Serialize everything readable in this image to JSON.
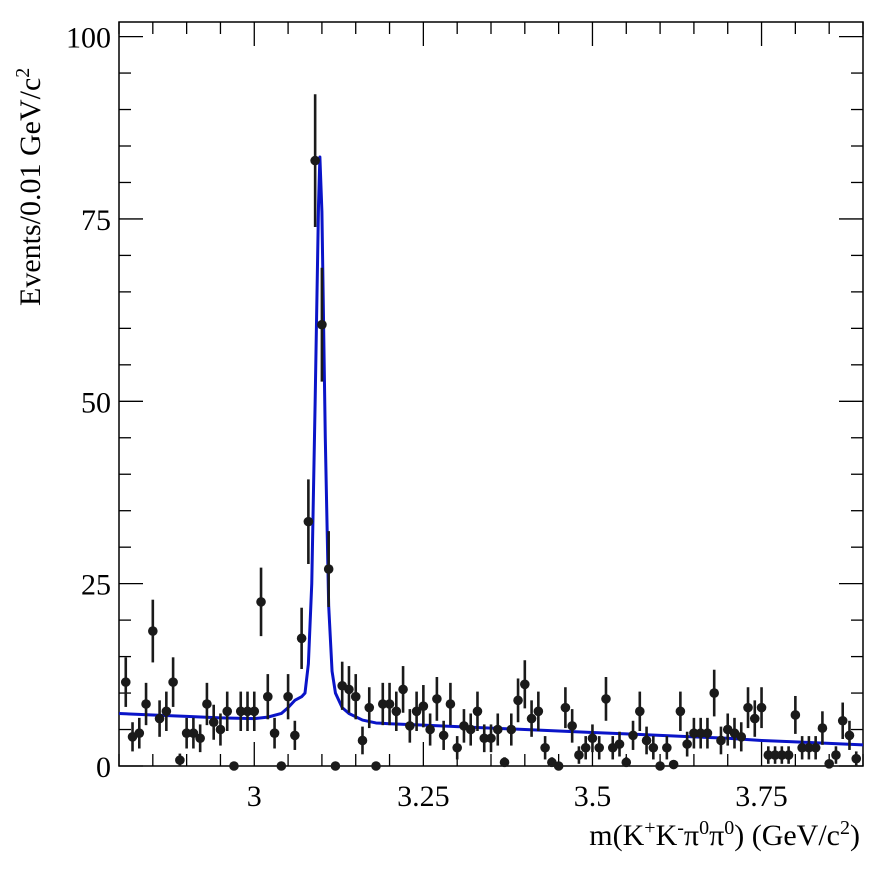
{
  "chart_data": {
    "type": "scatter",
    "title": "",
    "xlabel_parts": {
      "main": "m(K",
      "k_plus": "+",
      "k": "K",
      "k_minus": "-",
      "pi1": "π",
      "zero1": "0",
      "pi2": "π",
      "zero2": "0",
      "close": ") (GeV/c",
      "sq": "2",
      "end": ")"
    },
    "ylabel_parts": {
      "main": "Events/0.01 GeV/c",
      "sq": "2"
    },
    "xlim": [
      2.8,
      3.9
    ],
    "ylim": [
      0,
      102
    ],
    "x_ticks": [
      3,
      3.25,
      3.5,
      3.75
    ],
    "x_tick_labels": [
      "3",
      "3.25",
      "3.5",
      "3.75"
    ],
    "y_ticks": [
      0,
      25,
      50,
      75,
      100
    ],
    "y_tick_labels": [
      "0",
      "25",
      "50",
      "75",
      "100"
    ],
    "colors": {
      "data": "#1a1a1a",
      "fit": "#0a14c8",
      "axes": "#000000"
    },
    "series": [
      {
        "kind": "data",
        "x": [
          2.81,
          2.82,
          2.83,
          2.84,
          2.85,
          2.86,
          2.87,
          2.88,
          2.89,
          2.9,
          2.91,
          2.92,
          2.93,
          2.94,
          2.95,
          2.96,
          2.97,
          2.98,
          2.99,
          3.0,
          3.01,
          3.02,
          3.03,
          3.04,
          3.05,
          3.06,
          3.07,
          3.08,
          3.09,
          3.1,
          3.11,
          3.12,
          3.13,
          3.14,
          3.15,
          3.16,
          3.17,
          3.18,
          3.19,
          3.2,
          3.21,
          3.22,
          3.23,
          3.24,
          3.25,
          3.26,
          3.27,
          3.28,
          3.29,
          3.3,
          3.31,
          3.32,
          3.33,
          3.34,
          3.35,
          3.36,
          3.37,
          3.38,
          3.39,
          3.4,
          3.41,
          3.42,
          3.43,
          3.44,
          3.45,
          3.46,
          3.47,
          3.48,
          3.49,
          3.5,
          3.51,
          3.52,
          3.53,
          3.54,
          3.55,
          3.56,
          3.57,
          3.58,
          3.59,
          3.6,
          3.61,
          3.62,
          3.63,
          3.64,
          3.65,
          3.66,
          3.67,
          3.68,
          3.69,
          3.7,
          3.71,
          3.72,
          3.73,
          3.74,
          3.75,
          3.76,
          3.77,
          3.78,
          3.79,
          3.8,
          3.81,
          3.82,
          3.83,
          3.84,
          3.85,
          3.86,
          3.87,
          3.88,
          3.89
        ],
        "y": [
          11.5,
          4,
          4.5,
          8.5,
          18.5,
          6.5,
          7.5,
          11.5,
          0.8,
          4.5,
          4.5,
          3.8,
          8.5,
          6,
          5,
          7.5,
          0,
          7.5,
          7.5,
          7.5,
          22.5,
          9.5,
          4.5,
          0,
          9.5,
          4.2,
          17.5,
          33.5,
          83,
          60.5,
          27,
          0,
          11,
          10.5,
          9.5,
          3.5,
          8,
          0,
          8.5,
          8.5,
          7.5,
          10.5,
          5.5,
          7.5,
          8.2,
          5,
          9.2,
          4.2,
          8.5,
          2.5,
          5.5,
          5,
          7.5,
          3.8,
          3.8,
          5,
          0.5,
          5,
          9,
          11.2,
          6.5,
          7.5,
          2.5,
          0.5,
          0,
          8,
          5.5,
          1.5,
          2.5,
          3.8,
          2.5,
          9.2,
          2.5,
          3,
          0.5,
          4.2,
          7.5,
          3.5,
          2.5,
          0,
          2.5,
          0.2,
          7.5,
          3,
          4.5,
          4.5,
          4.5,
          10,
          3.5,
          5,
          4.5,
          4,
          8,
          6.5,
          8,
          1.5,
          1.5,
          1.5,
          1.5,
          7,
          2.5,
          2.5,
          2.5,
          5.2,
          0.3,
          1.5,
          6.2,
          4.2,
          1
        ],
        "yerr": [
          3.4,
          2,
          2.1,
          2.9,
          4.3,
          2.5,
          2.7,
          3.4,
          0.9,
          2.1,
          2.1,
          1.9,
          2.9,
          2.4,
          2.2,
          2.7,
          0,
          2.7,
          2.7,
          2.7,
          4.7,
          3.1,
          2.1,
          0,
          3.1,
          2,
          4.2,
          5.8,
          9.1,
          7.8,
          5.2,
          0,
          3.3,
          3.2,
          3.1,
          1.9,
          2.8,
          0,
          2.9,
          2.9,
          2.7,
          3.2,
          2.3,
          2.7,
          2.9,
          2.2,
          3,
          2,
          2.9,
          1.6,
          2.3,
          2.2,
          2.7,
          1.9,
          1.9,
          2.2,
          0.7,
          2.2,
          3,
          3.3,
          2.5,
          2.7,
          1.6,
          0.7,
          0,
          2.8,
          2.3,
          1.2,
          1.6,
          1.9,
          1.6,
          3,
          1.6,
          1.7,
          0.7,
          2,
          2.7,
          1.9,
          1.6,
          0,
          1.6,
          0.4,
          2.7,
          1.7,
          2.1,
          2.1,
          2.1,
          3.2,
          1.9,
          2.2,
          2.1,
          2,
          2.8,
          2.5,
          2.8,
          1.2,
          1.2,
          1.2,
          1.2,
          2.6,
          1.6,
          1.6,
          1.6,
          2.3,
          0.5,
          1.2,
          2.5,
          2,
          1
        ]
      },
      {
        "kind": "fit",
        "x": [
          2.8,
          2.85,
          2.9,
          2.95,
          3.0,
          3.02,
          3.04,
          3.05,
          3.06,
          3.07,
          3.075,
          3.08,
          3.085,
          3.09,
          3.095,
          3.097,
          3.1,
          3.105,
          3.11,
          3.115,
          3.12,
          3.13,
          3.14,
          3.16,
          3.18,
          3.2,
          3.25,
          3.3,
          3.35,
          3.4,
          3.45,
          3.5,
          3.55,
          3.6,
          3.65,
          3.7,
          3.75,
          3.8,
          3.85,
          3.9
        ],
        "y": [
          7.2,
          7.0,
          6.8,
          6.6,
          6.5,
          6.7,
          7.2,
          8.0,
          9.0,
          9.5,
          10,
          14,
          25,
          50,
          77,
          83.5,
          76,
          45,
          22,
          13,
          10,
          8,
          7.2,
          6.3,
          5.9,
          5.8,
          5.6,
          5.4,
          5.2,
          5.0,
          4.8,
          4.6,
          4.4,
          4.2,
          4.0,
          3.8,
          3.5,
          3.3,
          3.1,
          2.9
        ]
      }
    ]
  }
}
